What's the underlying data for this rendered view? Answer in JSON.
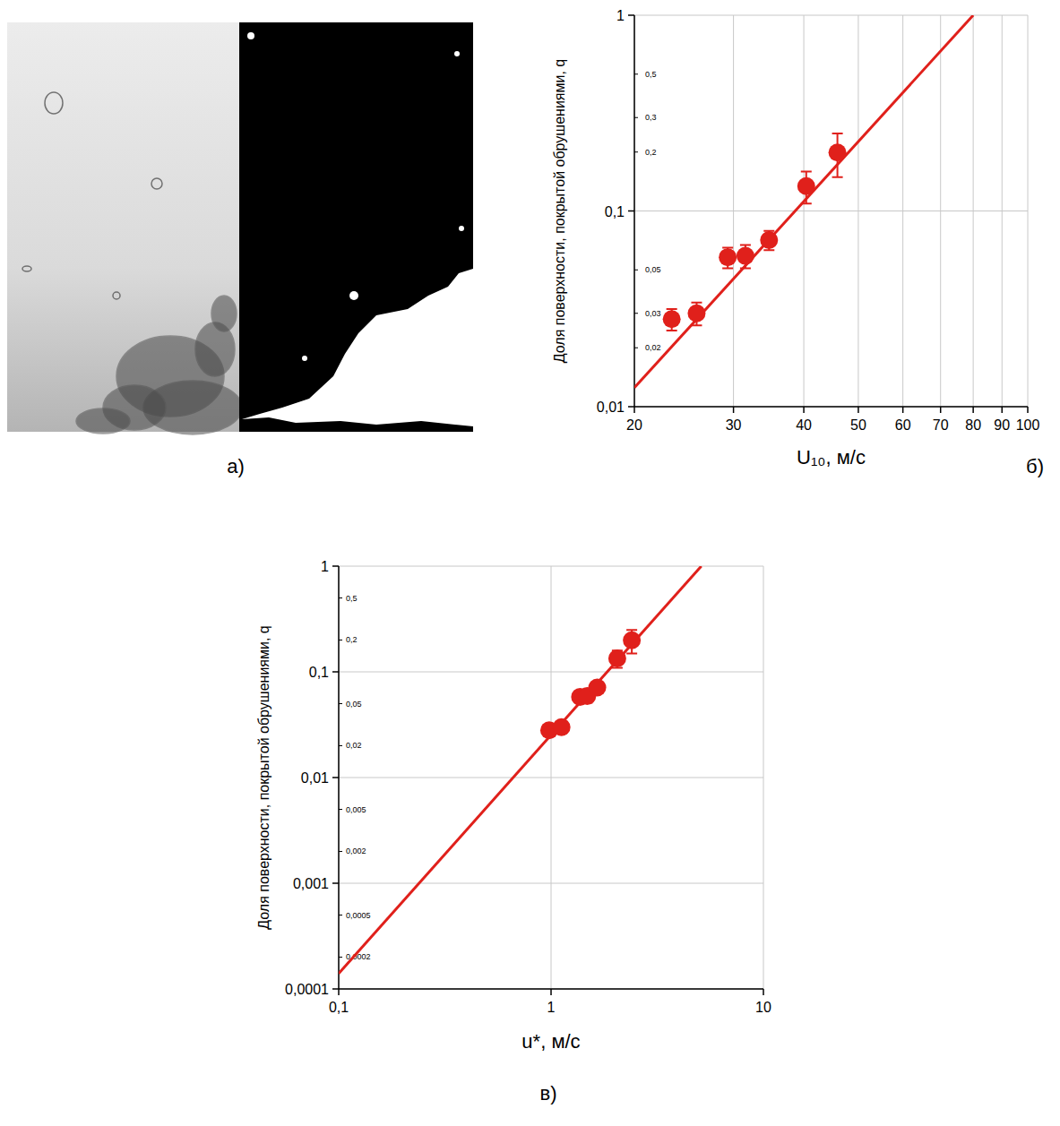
{
  "panel_labels": [
    "а)",
    "б)",
    "в)"
  ],
  "chart_data": [
    {
      "type": "scatter",
      "x_label": "U₁₀, м/с",
      "y_label": "Доля поверхности, покрытой обрушениями, q",
      "log": true,
      "grid": true,
      "color": "#e0201b",
      "xlim": [
        20,
        100
      ],
      "ylim": [
        0.01,
        1
      ],
      "xticks": [
        20,
        30,
        40,
        50,
        60,
        70,
        80,
        90,
        100
      ],
      "yticks": [
        {
          "value": 0.01,
          "label": "0,01"
        },
        {
          "value": 0.1,
          "label": "0,1"
        },
        1
      ],
      "annotations": [
        {
          "value": 0.5,
          "label": "0,5"
        },
        {
          "value": 0.3,
          "label": "0,3"
        },
        {
          "value": 0.2,
          "label": "0,2"
        },
        {
          "value": 0.05,
          "label": "0,05"
        },
        {
          "value": 0.03,
          "label": "0,03"
        },
        {
          "value": 0.02,
          "label": "0,02"
        }
      ],
      "series": [
        {
          "type": "scatter",
          "marker": "circle",
          "x": [
            23.3,
            25.8,
            29.3,
            31.5,
            34.7,
            40.4,
            45.9
          ],
          "values": [
            0.028,
            0.03,
            0.058,
            0.059,
            0.071,
            0.134,
            0.199
          ],
          "errors": [
            0.0035,
            0.004,
            0.007,
            0.008,
            0.008,
            0.025,
            0.05
          ]
        },
        {
          "type": "line",
          "line_style": "solid",
          "x": [
            20,
            80
          ],
          "values": [
            0.0125,
            1
          ]
        }
      ]
    },
    {
      "type": "scatter",
      "x_label": "u*, м/с",
      "y_label": "Доля поверхности, покрытой обрушениями, q",
      "log": true,
      "grid": true,
      "color": "#e0201b",
      "xlim": [
        0.1,
        10
      ],
      "ylim": [
        0.0001,
        1
      ],
      "xticks": [
        {
          "value": 0.1,
          "label": "0,1"
        },
        1,
        10
      ],
      "yticks": [
        {
          "value": 0.0001,
          "label": "0,0001"
        },
        {
          "value": 0.001,
          "label": "0,001"
        },
        {
          "value": 0.01,
          "label": "0,01"
        },
        {
          "value": 0.1,
          "label": "0,1"
        },
        1
      ],
      "annotations": [
        {
          "value": 0.5,
          "label": "0,5"
        },
        {
          "value": 0.2,
          "label": "0,2"
        },
        {
          "value": 0.05,
          "label": "0,05"
        },
        {
          "value": 0.02,
          "label": "0,02"
        },
        {
          "value": 0.005,
          "label": "0,005"
        },
        {
          "value": 0.002,
          "label": "0,002"
        },
        {
          "value": 0.0005,
          "label": "0,0005"
        },
        {
          "value": 0.0002,
          "label": "0,0002"
        }
      ],
      "series": [
        {
          "type": "scatter",
          "marker": "circle",
          "x": [
            0.98,
            1.12,
            1.37,
            1.48,
            1.65,
            2.05,
            2.4
          ],
          "values": [
            0.028,
            0.03,
            0.058,
            0.059,
            0.071,
            0.134,
            0.199
          ],
          "errors": [
            0.0035,
            0.004,
            0.007,
            0.008,
            0.008,
            0.025,
            0.05
          ]
        },
        {
          "type": "line",
          "line_style": "solid",
          "x": [
            0.1,
            5.1
          ],
          "values": [
            0.00014,
            1
          ]
        }
      ]
    }
  ]
}
